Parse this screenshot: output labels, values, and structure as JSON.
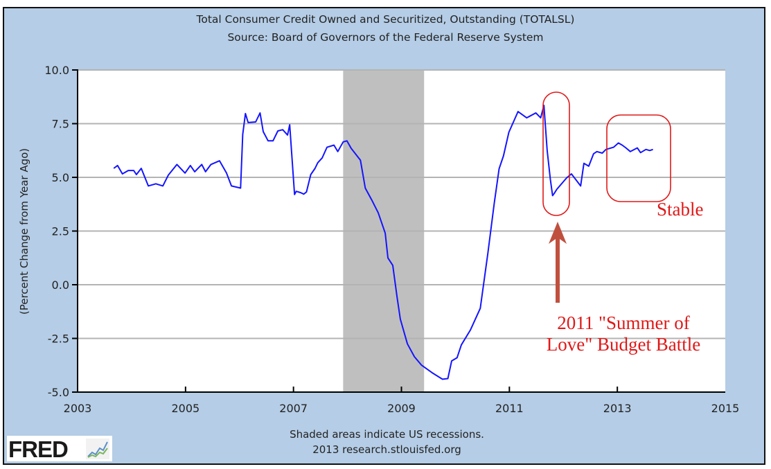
{
  "chart_data": {
    "type": "line",
    "title": "Total Consumer Credit Owned and Securitized, Outstanding (TOTALSL)",
    "subtitle": "Source: Board of Governors of the Federal Reserve System",
    "xlabel": "",
    "ylabel": "(Percent Change from Year Ago)",
    "xlim": [
      2003,
      2015
    ],
    "ylim": [
      -5.0,
      10.0
    ],
    "x_ticks": [
      "2003",
      "2005",
      "2007",
      "2009",
      "2011",
      "2013",
      "2015"
    ],
    "x_tick_values": [
      2003,
      2005,
      2007,
      2009,
      2011,
      2013,
      2015
    ],
    "y_ticks": [
      "10.0",
      "7.5",
      "5.0",
      "2.5",
      "0.0",
      "-2.5",
      "-5.0"
    ],
    "y_tick_values": [
      10,
      7.5,
      5,
      2.5,
      0,
      -2.5,
      -5
    ],
    "grid": true,
    "recessions": [
      {
        "start": 2007.92,
        "end": 2009.42
      }
    ],
    "series": [
      {
        "name": "TOTALSL",
        "color": "#1414ff",
        "x": [
          2003.67,
          2003.74,
          2003.83,
          2003.94,
          2004.04,
          2004.09,
          2004.18,
          2004.31,
          2004.45,
          2004.58,
          2004.68,
          2004.84,
          2004.99,
          2005.09,
          2005.17,
          2005.3,
          2005.37,
          2005.47,
          2005.63,
          2005.76,
          2005.85,
          2006.02,
          2006.06,
          2006.11,
          2006.16,
          2006.3,
          2006.38,
          2006.44,
          2006.53,
          2006.62,
          2006.71,
          2006.8,
          2006.89,
          2006.93,
          2007.02,
          2007.05,
          2007.13,
          2007.19,
          2007.24,
          2007.32,
          2007.4,
          2007.45,
          2007.53,
          2007.62,
          2007.75,
          2007.82,
          2007.92,
          2007.99,
          2008.07,
          2008.24,
          2008.33,
          2008.45,
          2008.57,
          2008.7,
          2008.75,
          2008.84,
          2008.92,
          2008.98,
          2009.11,
          2009.24,
          2009.37,
          2009.57,
          2009.76,
          2009.86,
          2009.93,
          2010.03,
          2010.11,
          2010.28,
          2010.46,
          2010.6,
          2010.72,
          2010.81,
          2010.89,
          2010.99,
          2011.16,
          2011.32,
          2011.49,
          2011.58,
          2011.64,
          2011.7,
          2011.76,
          2011.8,
          2011.83,
          2011.88,
          2012.06,
          2012.15,
          2012.32,
          2012.38,
          2012.47,
          2012.56,
          2012.62,
          2012.72,
          2012.79,
          2012.93,
          2013.02,
          2013.09,
          2013.16,
          2013.24,
          2013.37,
          2013.43,
          2013.53,
          2013.6,
          2013.66
        ],
        "y": [
          5.42,
          5.55,
          5.16,
          5.32,
          5.32,
          5.13,
          5.42,
          4.6,
          4.7,
          4.6,
          5.1,
          5.6,
          5.2,
          5.55,
          5.26,
          5.6,
          5.26,
          5.6,
          5.77,
          5.2,
          4.6,
          4.5,
          7.0,
          7.97,
          7.55,
          7.58,
          8.0,
          7.13,
          6.7,
          6.7,
          7.16,
          7.22,
          6.97,
          7.45,
          4.2,
          4.35,
          4.29,
          4.22,
          4.32,
          5.13,
          5.42,
          5.68,
          5.9,
          6.4,
          6.5,
          6.2,
          6.65,
          6.7,
          6.35,
          5.8,
          4.5,
          3.95,
          3.35,
          2.4,
          1.25,
          0.9,
          -0.6,
          -1.6,
          -2.75,
          -3.35,
          -3.74,
          -4.1,
          -4.4,
          -4.37,
          -3.55,
          -3.4,
          -2.8,
          -2.1,
          -1.1,
          1.45,
          3.8,
          5.4,
          6.0,
          7.1,
          8.06,
          7.77,
          8.0,
          7.77,
          8.35,
          6.25,
          4.9,
          4.15,
          4.25,
          4.45,
          4.97,
          5.16,
          4.6,
          5.65,
          5.52,
          6.1,
          6.2,
          6.13,
          6.3,
          6.4,
          6.6,
          6.5,
          6.37,
          6.2,
          6.37,
          6.15,
          6.3,
          6.25,
          6.3
        ]
      }
    ],
    "annotations": [
      "Stable",
      "2011 \"Summer of Love\" Budget Battle"
    ],
    "footnote": "Shaded areas indicate US recessions.",
    "credit": "2013 research.stlouisfed.org"
  },
  "annotation_text": {
    "stable": "Stable",
    "battle_line1": "2011 \"Summer of",
    "battle_line2": "Love\" Budget Battle"
  },
  "colors": {
    "background_panel": "#b5cde6",
    "line": "#1414ff",
    "recession_shade": "#bfbfbf",
    "annotation_red": "#e01818",
    "arrow": "#c0503e"
  },
  "logo": {
    "text": "FRED"
  }
}
